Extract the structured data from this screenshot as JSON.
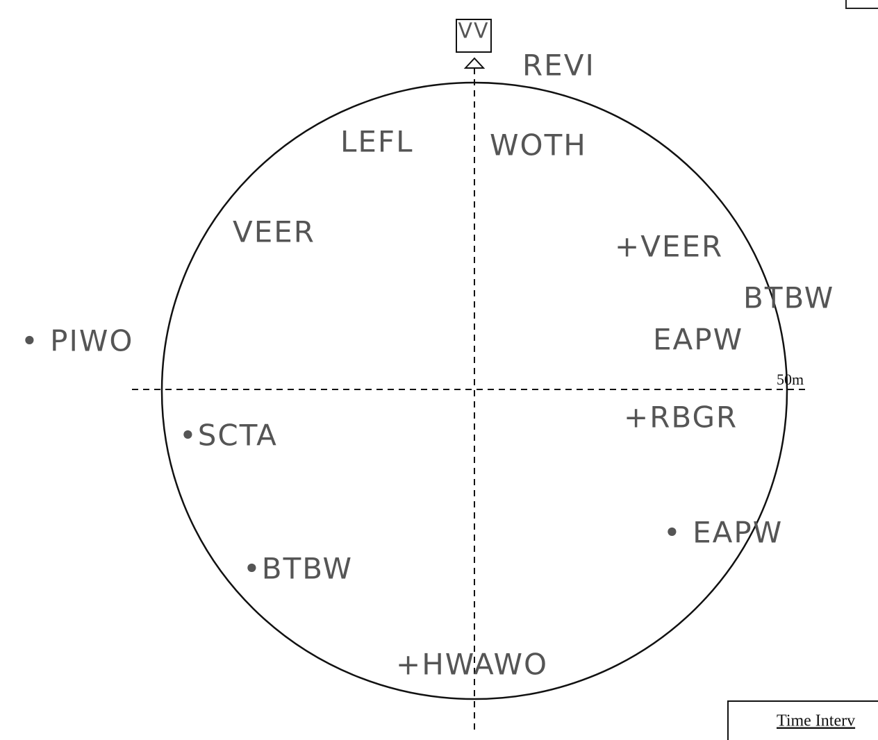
{
  "north_marker": "VV",
  "scale_label": "50m",
  "observations": [
    {
      "label": "REVI"
    },
    {
      "label": "LEFL"
    },
    {
      "label": "WOTH"
    },
    {
      "label": "VEER"
    },
    {
      "label": "+VEER"
    },
    {
      "label": "BTBW"
    },
    {
      "label": "EAPW"
    },
    {
      "label": "• PIWO"
    },
    {
      "label": "•SCTA"
    },
    {
      "label": "+RBGR"
    },
    {
      "label": "• EAPW"
    },
    {
      "label": "•BTBW"
    },
    {
      "label": "+HWAWO"
    }
  ],
  "footer": {
    "time_interval": "Time Interv"
  }
}
